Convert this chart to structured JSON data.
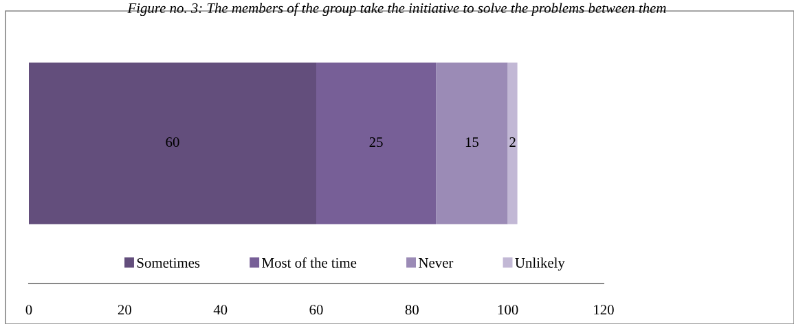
{
  "chart_data": {
    "type": "bar",
    "title": "Figure no. 3: The members of the group take the initiative to solve the problems between them",
    "orientation": "horizontal",
    "stacked": true,
    "categories": [
      null
    ],
    "series": [
      {
        "name": "Sometimes",
        "color": "#634e7c",
        "values": [
          60
        ]
      },
      {
        "name": "Most of the time",
        "color": "#775f97",
        "values": [
          25
        ]
      },
      {
        "name": "Never",
        "color": "#9b8bb6",
        "values": [
          15
        ]
      },
      {
        "name": "Unlikely",
        "color": "#c2b8d5",
        "values": [
          2
        ]
      }
    ],
    "xlim": [
      0,
      120
    ],
    "xticks": [
      0,
      20,
      40,
      60,
      80,
      100,
      120
    ],
    "data_labels": true,
    "legend": "bottom",
    "grid": false
  }
}
